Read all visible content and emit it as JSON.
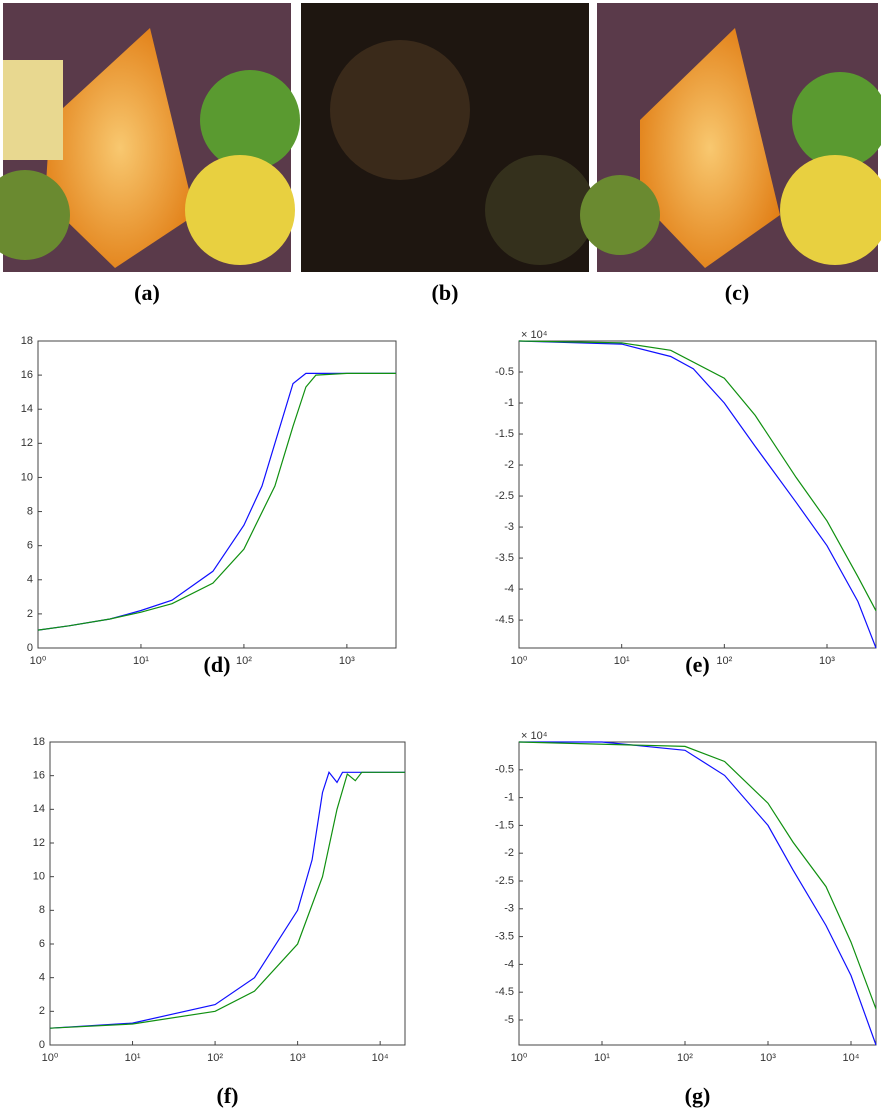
{
  "images": [
    {
      "caption": "(a)"
    },
    {
      "caption": "(b)"
    },
    {
      "caption": "(c)"
    }
  ],
  "chart_data": [
    {
      "type": "line",
      "caption": "(d)",
      "xscale": "log",
      "xlim": [
        1,
        3000
      ],
      "ylim": [
        0,
        18
      ],
      "xticks": [
        {
          "value": 1,
          "label": "10⁰"
        },
        {
          "value": 10,
          "label": "10¹"
        },
        {
          "value": 100,
          "label": "10²"
        },
        {
          "value": 1000,
          "label": "10³"
        }
      ],
      "yticks": [
        0,
        2,
        4,
        6,
        8,
        10,
        12,
        14,
        16,
        18
      ],
      "series": [
        {
          "color": "#1010ff",
          "x": [
            1,
            2,
            5,
            10,
            20,
            50,
            100,
            150,
            200,
            300,
            400,
            1000,
            3000
          ],
          "values": [
            1.05,
            1.3,
            1.7,
            2.2,
            2.8,
            4.5,
            7.2,
            9.5,
            12,
            15.5,
            16.1,
            16.1,
            16.1
          ]
        },
        {
          "color": "#109010",
          "x": [
            1,
            2,
            5,
            10,
            20,
            50,
            100,
            200,
            300,
            400,
            500,
            1000,
            3000
          ],
          "values": [
            1.05,
            1.3,
            1.7,
            2.1,
            2.6,
            3.8,
            5.8,
            9.5,
            13,
            15.3,
            16,
            16.1,
            16.1
          ]
        }
      ]
    },
    {
      "type": "line",
      "caption": "(e)",
      "annotation": "× 10⁴",
      "xscale": "log",
      "xlim": [
        1,
        3000
      ],
      "ylim": [
        -4.95,
        0
      ],
      "xticks": [
        {
          "value": 1,
          "label": "10⁰"
        },
        {
          "value": 10,
          "label": "10¹"
        },
        {
          "value": 100,
          "label": "10²"
        },
        {
          "value": 1000,
          "label": "10³"
        }
      ],
      "yticks": [
        -4.5,
        -4,
        -3.5,
        -3,
        -2.5,
        -2,
        -1.5,
        -1,
        -0.5
      ],
      "series": [
        {
          "color": "#1010ff",
          "x": [
            1,
            10,
            30,
            50,
            100,
            200,
            500,
            1000,
            2000,
            3000
          ],
          "values": [
            0,
            -0.05,
            -0.25,
            -0.45,
            -1.0,
            -1.7,
            -2.6,
            -3.3,
            -4.2,
            -4.95
          ]
        },
        {
          "color": "#109010",
          "x": [
            1,
            10,
            30,
            100,
            200,
            500,
            1000,
            2000,
            3000
          ],
          "values": [
            0,
            -0.03,
            -0.15,
            -0.6,
            -1.2,
            -2.2,
            -2.9,
            -3.8,
            -4.35
          ]
        }
      ]
    },
    {
      "type": "line",
      "caption": "(f)",
      "xscale": "log",
      "xlim": [
        1,
        20000
      ],
      "ylim": [
        0,
        18
      ],
      "xticks": [
        {
          "value": 1,
          "label": "10⁰"
        },
        {
          "value": 10,
          "label": "10¹"
        },
        {
          "value": 100,
          "label": "10²"
        },
        {
          "value": 1000,
          "label": "10³"
        },
        {
          "value": 10000,
          "label": "10⁴"
        }
      ],
      "yticks": [
        0,
        2,
        4,
        6,
        8,
        10,
        12,
        14,
        16,
        18
      ],
      "series": [
        {
          "color": "#1010ff",
          "x": [
            1,
            10,
            100,
            300,
            1000,
            1500,
            2000,
            2400,
            3000,
            3500,
            20000
          ],
          "values": [
            1,
            1.3,
            2.4,
            4,
            8,
            11,
            15,
            16.2,
            15.6,
            16.2,
            16.2
          ]
        },
        {
          "color": "#109010",
          "x": [
            1,
            10,
            100,
            300,
            1000,
            2000,
            3000,
            4000,
            5000,
            6000,
            20000
          ],
          "values": [
            1,
            1.25,
            2,
            3.2,
            6,
            10,
            14,
            16.1,
            15.7,
            16.2,
            16.2
          ]
        }
      ]
    },
    {
      "type": "line",
      "caption": "(g)",
      "annotation": "× 10⁴",
      "xscale": "log",
      "xlim": [
        1,
        20000
      ],
      "ylim": [
        -5.45,
        0
      ],
      "xticks": [
        {
          "value": 1,
          "label": "10⁰"
        },
        {
          "value": 10,
          "label": "10¹"
        },
        {
          "value": 100,
          "label": "10²"
        },
        {
          "value": 1000,
          "label": "10³"
        },
        {
          "value": 10000,
          "label": "10⁴"
        }
      ],
      "yticks": [
        -5,
        -4.5,
        -4,
        -3.5,
        -3,
        -2.5,
        -2,
        -1.5,
        -1,
        -0.5
      ],
      "series": [
        {
          "color": "#1010ff",
          "x": [
            1,
            10,
            100,
            300,
            1000,
            2000,
            5000,
            10000,
            20000
          ],
          "values": [
            0,
            0,
            -0.15,
            -0.6,
            -1.5,
            -2.3,
            -3.3,
            -4.2,
            -5.45
          ]
        },
        {
          "color": "#109010",
          "x": [
            1,
            100,
            300,
            1000,
            2000,
            5000,
            10000,
            20000
          ],
          "values": [
            0,
            -0.08,
            -0.35,
            -1.1,
            -1.8,
            -2.6,
            -3.6,
            -4.8
          ]
        }
      ]
    }
  ]
}
